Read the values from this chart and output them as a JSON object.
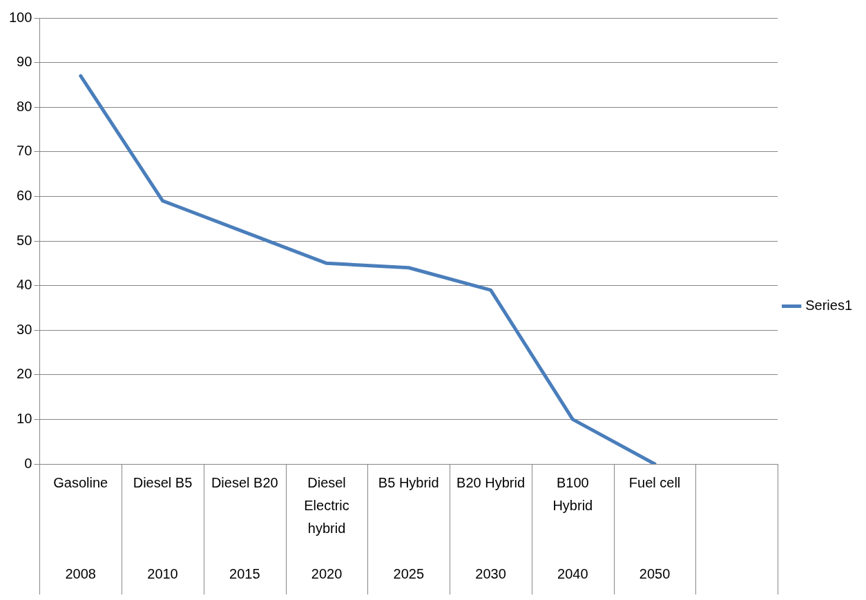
{
  "chart_data": {
    "type": "line",
    "categories": [
      "Gasoline\n2008",
      "Diesel B5\n2010",
      "Diesel B20\n2015",
      "Diesel Electric hybrid\n2020",
      "B5 Hybrid\n2025",
      "B20 Hybrid\n2030",
      "B100 Hybrid\n2040",
      "Fuel cell\n2050",
      null
    ],
    "series": [
      {
        "name": "Series1",
        "color": "#4a7ebb",
        "values": [
          87,
          59,
          52,
          45,
          44,
          39,
          10,
          0,
          null
        ]
      }
    ],
    "ylim": [
      0,
      100
    ],
    "yticks": [
      0,
      10,
      20,
      30,
      40,
      50,
      60,
      70,
      80,
      90,
      100
    ],
    "grid": "y",
    "legend": "right",
    "marker": "none",
    "line_style": "solid"
  }
}
